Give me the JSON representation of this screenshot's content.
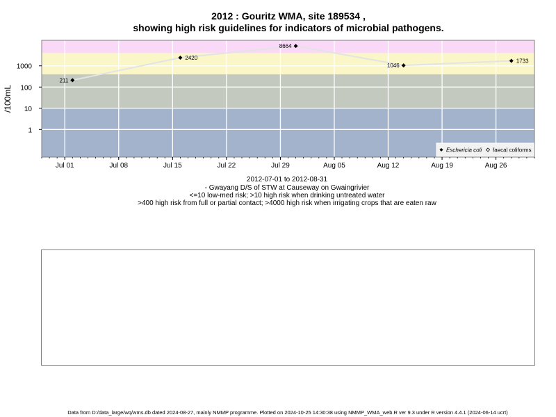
{
  "chart_data": {
    "type": "scatter",
    "title": "2012 : Gouritz WMA, site 189534 ,",
    "subtitle": "showing high risk guidelines for indicators of microbial pathogens.",
    "ylabel": "/100mL",
    "xlabel_lines": [
      "2012-07-01 to 2012-08-31",
      "- Gwayang D/S of STW at Causeway on Gwaingrivier",
      "<=10 low-med risk; >10 high risk when drinking untreated water",
      ">400 high risk from full or partial contact; >4000 high risk when irrigating crops that are eaten raw"
    ],
    "x_axis": {
      "start_date": "2012-06-28",
      "end_date": "2012-08-31",
      "ticks": [
        {
          "date": "2012-07-01",
          "label": "Jul 01"
        },
        {
          "date": "2012-07-08",
          "label": "Jul 08"
        },
        {
          "date": "2012-07-15",
          "label": "Jul 15"
        },
        {
          "date": "2012-07-22",
          "label": "Jul 22"
        },
        {
          "date": "2012-07-29",
          "label": "Jul 29"
        },
        {
          "date": "2012-08-05",
          "label": "Aug 05"
        },
        {
          "date": "2012-08-12",
          "label": "Aug 12"
        },
        {
          "date": "2012-08-19",
          "label": "Aug 19"
        },
        {
          "date": "2012-08-26",
          "label": "Aug 26"
        }
      ]
    },
    "y_axis": {
      "scale": "log",
      "ylim": [
        0.05,
        16000
      ],
      "ticks": [
        {
          "value": 1,
          "label": "1"
        },
        {
          "value": 10,
          "label": "10"
        },
        {
          "value": 100,
          "label": "100"
        },
        {
          "value": 1000,
          "label": "1000"
        }
      ]
    },
    "bands": [
      {
        "from": 0.05,
        "to": 10,
        "color": "#a3b3cc",
        "label": "low-med risk"
      },
      {
        "from": 10,
        "to": 400,
        "color": "#c3c9bf",
        "label": "high risk drinking"
      },
      {
        "from": 400,
        "to": 4000,
        "color": "#fbf6c8",
        "label": "high risk contact"
      },
      {
        "from": 4000,
        "to": 16000,
        "color": "#fad9f8",
        "label": "high risk irrigation"
      }
    ],
    "series": [
      {
        "name": "Eschericia coli",
        "marker": "filled-diamond",
        "color": "#000000",
        "points": [
          {
            "date": "2012-07-02",
            "value": 211,
            "label": "211"
          },
          {
            "date": "2012-07-16",
            "value": 2420,
            "label": "2420"
          },
          {
            "date": "2012-07-31",
            "value": 8664,
            "label": "8664"
          },
          {
            "date": "2012-08-14",
            "value": 1046,
            "label": "1046"
          },
          {
            "date": "2012-08-28",
            "value": 1733,
            "label": "1733"
          }
        ]
      },
      {
        "name": "faecal coliforms",
        "marker": "open-diamond",
        "color": "#000000",
        "points": []
      }
    ],
    "grid": true,
    "legend_position": "bottom-right"
  },
  "footer": "Data from D:/data_large/wq/wms.db dated 2024-08-27, mainly NMMP programme. Plotted on 2024-10-25 14:30:38 using NMMP_WMA_web.R ver 9.3 under R version 4.4.1 (2024-06-14 ucrt)"
}
